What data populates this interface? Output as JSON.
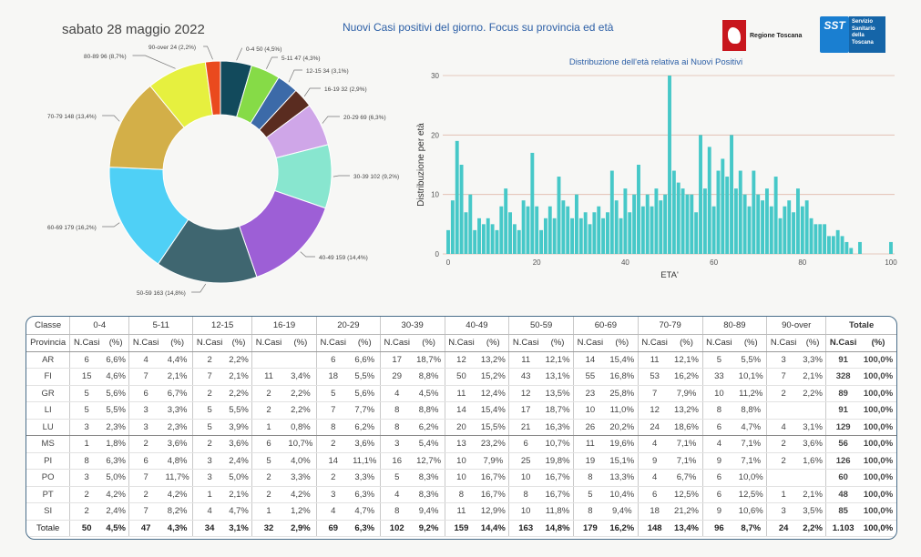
{
  "header": {
    "date": "sabato 28 maggio 2022",
    "title": "Nuovi Casi positivi del giorno. Focus su provincia ed età",
    "logo_regione": "Regione Toscana",
    "logo_sst_short": "SST",
    "logo_sst_full": "Servizio Sanitario della Toscana"
  },
  "chart_data": [
    {
      "type": "pie",
      "donut": true,
      "categories": [
        "0-4",
        "5-11",
        "12-15",
        "16-19",
        "20-29",
        "30-39",
        "40-49",
        "50-59",
        "60-69",
        "70-79",
        "80-89",
        "90-over"
      ],
      "values": [
        50,
        47,
        34,
        32,
        69,
        102,
        159,
        163,
        179,
        148,
        96,
        24
      ],
      "labels": [
        "0-4 50 (4,5%)",
        "5-11 47 (4,3%)",
        "12-15 34 (3,1%)",
        "16-19 32 (2,9%)",
        "20-29 69 (6,3%)",
        "30-39 102 (9,2%)",
        "40-49 159 (14,4%)",
        "50-59 163 (14,8%)",
        "60-69 179 (16,2%)",
        "70-79 148 (13,4%)",
        "80-89 96 (8,7%)",
        "90-over 24 (2,2%)"
      ],
      "colors": [
        "#124a5c",
        "#86db47",
        "#3c6aa8",
        "#5a2c20",
        "#cfa6e8",
        "#88e6cf",
        "#9d5fd6",
        "#3f6670",
        "#4fd0f6",
        "#d3af48",
        "#e6f03f",
        "#ea4a1e"
      ]
    },
    {
      "type": "bar",
      "title": "Distribuzione dell'età relativa ai Nuovi Positivi",
      "xlabel": "ETA'",
      "ylabel": "Distribuzione per età",
      "xlim": [
        0,
        100
      ],
      "ylim": [
        0,
        30
      ],
      "xticks": [
        0,
        20,
        40,
        60,
        80,
        100
      ],
      "yticks": [
        0,
        10,
        20,
        30
      ],
      "grid": true,
      "color": "#46c8c8",
      "x": [
        0,
        1,
        2,
        3,
        4,
        5,
        6,
        7,
        8,
        9,
        10,
        11,
        12,
        13,
        14,
        15,
        16,
        17,
        18,
        19,
        20,
        21,
        22,
        23,
        24,
        25,
        26,
        27,
        28,
        29,
        30,
        31,
        32,
        33,
        34,
        35,
        36,
        37,
        38,
        39,
        40,
        41,
        42,
        43,
        44,
        45,
        46,
        47,
        48,
        49,
        50,
        51,
        52,
        53,
        54,
        55,
        56,
        57,
        58,
        59,
        60,
        61,
        62,
        63,
        64,
        65,
        66,
        67,
        68,
        69,
        70,
        71,
        72,
        73,
        74,
        75,
        76,
        77,
        78,
        79,
        80,
        81,
        82,
        83,
        84,
        85,
        86,
        87,
        88,
        89,
        90,
        91,
        92,
        93,
        94,
        95,
        96,
        97,
        98,
        99,
        100
      ],
      "values": [
        4,
        9,
        19,
        15,
        7,
        10,
        4,
        6,
        5,
        6,
        5,
        4,
        8,
        11,
        7,
        5,
        4,
        9,
        8,
        17,
        8,
        4,
        6,
        8,
        6,
        13,
        9,
        8,
        6,
        10,
        6,
        7,
        5,
        7,
        8,
        6,
        7,
        14,
        9,
        6,
        11,
        7,
        10,
        15,
        8,
        10,
        8,
        11,
        9,
        10,
        30,
        14,
        12,
        11,
        10,
        10,
        7,
        20,
        11,
        18,
        8,
        14,
        16,
        13,
        20,
        11,
        14,
        10,
        8,
        14,
        10,
        9,
        11,
        8,
        13,
        6,
        8,
        9,
        7,
        11,
        8,
        9,
        6,
        5,
        5,
        5,
        3,
        3,
        4,
        3,
        2,
        1,
        0,
        2,
        0,
        0,
        0,
        0,
        0,
        0,
        2
      ]
    }
  ],
  "table": {
    "header_classe": "Classe",
    "header_provincia": "Provincia",
    "header_totale": "Totale",
    "sub_ncasi": "N.Casi",
    "sub_pct": "(%)",
    "classes": [
      "0-4",
      "5-11",
      "12-15",
      "16-19",
      "20-29",
      "30-39",
      "40-49",
      "50-59",
      "60-69",
      "70-79",
      "80-89",
      "90-over"
    ],
    "rows": [
      {
        "prov": "AR",
        "cells": [
          [
            "6",
            "6,6%"
          ],
          [
            "4",
            "4,4%"
          ],
          [
            "2",
            "2,2%"
          ],
          [
            "",
            ""
          ],
          [
            "6",
            "6,6%"
          ],
          [
            "17",
            "18,7%"
          ],
          [
            "12",
            "13,2%"
          ],
          [
            "11",
            "12,1%"
          ],
          [
            "14",
            "15,4%"
          ],
          [
            "11",
            "12,1%"
          ],
          [
            "5",
            "5,5%"
          ],
          [
            "3",
            "3,3%"
          ]
        ],
        "tot": [
          "91",
          "100,0%"
        ]
      },
      {
        "prov": "FI",
        "cells": [
          [
            "15",
            "4,6%"
          ],
          [
            "7",
            "2,1%"
          ],
          [
            "7",
            "2,1%"
          ],
          [
            "11",
            "3,4%"
          ],
          [
            "18",
            "5,5%"
          ],
          [
            "29",
            "8,8%"
          ],
          [
            "50",
            "15,2%"
          ],
          [
            "43",
            "13,1%"
          ],
          [
            "55",
            "16,8%"
          ],
          [
            "53",
            "16,2%"
          ],
          [
            "33",
            "10,1%"
          ],
          [
            "7",
            "2,1%"
          ]
        ],
        "tot": [
          "328",
          "100,0%"
        ]
      },
      {
        "prov": "GR",
        "cells": [
          [
            "5",
            "5,6%"
          ],
          [
            "6",
            "6,7%"
          ],
          [
            "2",
            "2,2%"
          ],
          [
            "2",
            "2,2%"
          ],
          [
            "5",
            "5,6%"
          ],
          [
            "4",
            "4,5%"
          ],
          [
            "11",
            "12,4%"
          ],
          [
            "12",
            "13,5%"
          ],
          [
            "23",
            "25,8%"
          ],
          [
            "7",
            "7,9%"
          ],
          [
            "10",
            "11,2%"
          ],
          [
            "2",
            "2,2%"
          ]
        ],
        "tot": [
          "89",
          "100,0%"
        ]
      },
      {
        "prov": "LI",
        "cells": [
          [
            "5",
            "5,5%"
          ],
          [
            "3",
            "3,3%"
          ],
          [
            "5",
            "5,5%"
          ],
          [
            "2",
            "2,2%"
          ],
          [
            "7",
            "7,7%"
          ],
          [
            "8",
            "8,8%"
          ],
          [
            "14",
            "15,4%"
          ],
          [
            "17",
            "18,7%"
          ],
          [
            "10",
            "11,0%"
          ],
          [
            "12",
            "13,2%"
          ],
          [
            "8",
            "8,8%"
          ],
          [
            "",
            ""
          ]
        ],
        "tot": [
          "91",
          "100,0%"
        ]
      },
      {
        "prov": "LU",
        "cells": [
          [
            "3",
            "2,3%"
          ],
          [
            "3",
            "2,3%"
          ],
          [
            "5",
            "3,9%"
          ],
          [
            "1",
            "0,8%"
          ],
          [
            "8",
            "6,2%"
          ],
          [
            "8",
            "6,2%"
          ],
          [
            "20",
            "15,5%"
          ],
          [
            "21",
            "16,3%"
          ],
          [
            "26",
            "20,2%"
          ],
          [
            "24",
            "18,6%"
          ],
          [
            "6",
            "4,7%"
          ],
          [
            "4",
            "3,1%"
          ]
        ],
        "tot": [
          "129",
          "100,0%"
        ]
      },
      {
        "prov": "MS",
        "cells": [
          [
            "1",
            "1,8%"
          ],
          [
            "2",
            "3,6%"
          ],
          [
            "2",
            "3,6%"
          ],
          [
            "6",
            "10,7%"
          ],
          [
            "2",
            "3,6%"
          ],
          [
            "3",
            "5,4%"
          ],
          [
            "13",
            "23,2%"
          ],
          [
            "6",
            "10,7%"
          ],
          [
            "11",
            "19,6%"
          ],
          [
            "4",
            "7,1%"
          ],
          [
            "4",
            "7,1%"
          ],
          [
            "2",
            "3,6%"
          ]
        ],
        "tot": [
          "56",
          "100,0%"
        ]
      },
      {
        "prov": "PI",
        "cells": [
          [
            "8",
            "6,3%"
          ],
          [
            "6",
            "4,8%"
          ],
          [
            "3",
            "2,4%"
          ],
          [
            "5",
            "4,0%"
          ],
          [
            "14",
            "11,1%"
          ],
          [
            "16",
            "12,7%"
          ],
          [
            "10",
            "7,9%"
          ],
          [
            "25",
            "19,8%"
          ],
          [
            "19",
            "15,1%"
          ],
          [
            "9",
            "7,1%"
          ],
          [
            "9",
            "7,1%"
          ],
          [
            "2",
            "1,6%"
          ]
        ],
        "tot": [
          "126",
          "100,0%"
        ]
      },
      {
        "prov": "PO",
        "cells": [
          [
            "3",
            "5,0%"
          ],
          [
            "7",
            "11,7%"
          ],
          [
            "3",
            "5,0%"
          ],
          [
            "2",
            "3,3%"
          ],
          [
            "2",
            "3,3%"
          ],
          [
            "5",
            "8,3%"
          ],
          [
            "10",
            "16,7%"
          ],
          [
            "10",
            "16,7%"
          ],
          [
            "8",
            "13,3%"
          ],
          [
            "4",
            "6,7%"
          ],
          [
            "6",
            "10,0%"
          ],
          [
            "",
            ""
          ]
        ],
        "tot": [
          "60",
          "100,0%"
        ]
      },
      {
        "prov": "PT",
        "cells": [
          [
            "2",
            "4,2%"
          ],
          [
            "2",
            "4,2%"
          ],
          [
            "1",
            "2,1%"
          ],
          [
            "2",
            "4,2%"
          ],
          [
            "3",
            "6,3%"
          ],
          [
            "4",
            "8,3%"
          ],
          [
            "8",
            "16,7%"
          ],
          [
            "8",
            "16,7%"
          ],
          [
            "5",
            "10,4%"
          ],
          [
            "6",
            "12,5%"
          ],
          [
            "6",
            "12,5%"
          ],
          [
            "1",
            "2,1%"
          ]
        ],
        "tot": [
          "48",
          "100,0%"
        ]
      },
      {
        "prov": "SI",
        "cells": [
          [
            "2",
            "2,4%"
          ],
          [
            "7",
            "8,2%"
          ],
          [
            "4",
            "4,7%"
          ],
          [
            "1",
            "1,2%"
          ],
          [
            "4",
            "4,7%"
          ],
          [
            "8",
            "9,4%"
          ],
          [
            "11",
            "12,9%"
          ],
          [
            "10",
            "11,8%"
          ],
          [
            "8",
            "9,4%"
          ],
          [
            "18",
            "21,2%"
          ],
          [
            "9",
            "10,6%"
          ],
          [
            "3",
            "3,5%"
          ]
        ],
        "tot": [
          "85",
          "100,0%"
        ]
      }
    ],
    "total_row": {
      "prov": "Totale",
      "cells": [
        [
          "50",
          "4,5%"
        ],
        [
          "47",
          "4,3%"
        ],
        [
          "34",
          "3,1%"
        ],
        [
          "32",
          "2,9%"
        ],
        [
          "69",
          "6,3%"
        ],
        [
          "102",
          "9,2%"
        ],
        [
          "159",
          "14,4%"
        ],
        [
          "163",
          "14,8%"
        ],
        [
          "179",
          "16,2%"
        ],
        [
          "148",
          "13,4%"
        ],
        [
          "96",
          "8,7%"
        ],
        [
          "24",
          "2,2%"
        ]
      ],
      "tot": [
        "1.103",
        "100,0%"
      ]
    }
  }
}
